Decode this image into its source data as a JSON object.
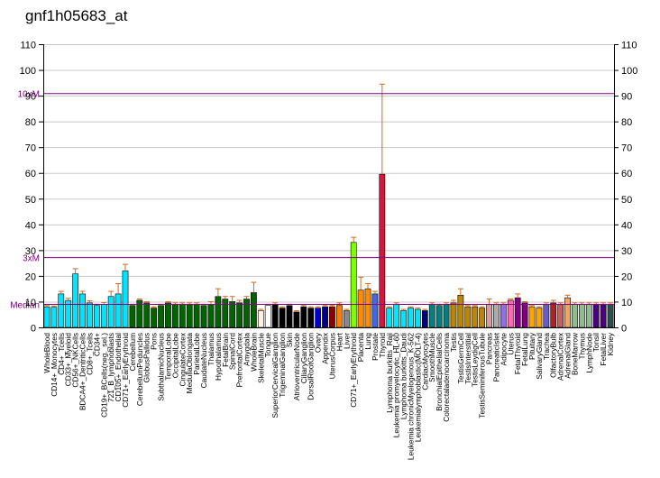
{
  "title": "gnf1h05683_at",
  "chart_data": {
    "type": "bar",
    "title": "gnf1h05683_at",
    "ylim": [
      0,
      110
    ],
    "yticks": [
      0,
      10,
      20,
      30,
      40,
      50,
      60,
      70,
      80,
      90,
      100,
      110
    ],
    "grid": true,
    "reference_lines": [
      {
        "label": "10xM",
        "value": 91,
        "color": "#800080"
      },
      {
        "label": "3xM",
        "value": 27.3,
        "color": "#800080"
      },
      {
        "label": "Median",
        "value": 9.1,
        "color": "#800080"
      }
    ],
    "categories": [
      "WholeBlood",
      "CD14+_Monocytes",
      "CD4+_Tcells",
      "CD33+_Myeloid",
      "CD56+_NKCells",
      "BDCA4+_DentriticCells",
      "CD8+_Tcells",
      "CD34+",
      "CD19+_BCells(neg._sel.)",
      "721_B_lymphoblasts",
      "CD105+_Endothelial",
      "CD71+_EarlyErythroid",
      "Cerebellum",
      "CerebellumPeduncles",
      "GlobusPallidus",
      "Pons",
      "SubthalamicNucleus",
      "TemporalLobe",
      "OccipitalLobe",
      "CingulateCortex",
      "MedullaOblongata",
      "ParietalLobe",
      "CaudateNucleus",
      "Thalamus",
      "Hypothalamus",
      "FetalBrain",
      "SpinalCord",
      "PrefrontalCortex",
      "Amygdala",
      "WholeBrain",
      "SkeletalMuscle",
      "Tongue",
      "SuperiorCervicalGanglion",
      "TrigeminalGanglion",
      "Skin",
      "AtrioventricularNode",
      "CiliaryGanglion",
      "DorsalRootGanglion",
      "Ovary",
      "Appendix",
      "UterusCorpus",
      "Heart",
      "Liver",
      "CD71+_EarlyErythroid2",
      "Placenta",
      "Lung",
      "Prostate",
      "Thyroid",
      "Lymphoma burkitts Raji",
      "Leukemia promyelocytic HL-60",
      "Lymphoma burkitts Daudi",
      "Leukemia chronicMyelogenous K-562",
      "Leukemia lymphoblastic MOLT-4",
      "CardiacMyocytes",
      "SmoothMuscle",
      "BronchialEpithelialCells",
      "Colorectaladenocarcinoma",
      "Testis",
      "TestisGermCell",
      "TestisInterstitial",
      "TestisLeydigCell",
      "TestisSeminiferousTubule",
      "Pancreas",
      "PancreaticIslet",
      "Adipocyte",
      "Uterus",
      "FetalThyroid",
      "FetalLung",
      "Pituitary",
      "SalivaryGland",
      "Trachea",
      "OlfactoryBulb",
      "AdrenalCortex",
      "AdrenalGland",
      "BoneMarrow",
      "Thymus",
      "LymphNode",
      "Tonsil",
      "FetalLiver",
      "Kidney"
    ],
    "xlabels": [
      "WholeBlood",
      "CD14+_Monocytes",
      "CD4+_Tcells",
      "CD33+_Myeloid",
      "CD56+_NKCells",
      "BDCA4+_DentriticCells",
      "CD8+_Tcells",
      "CD34+",
      "CD19+_BCells(neg._sel.)",
      "721_B_lymphoblasts",
      "CD105+_Endothelial",
      "CD71+_EarlyErythroid",
      "Cerebellum",
      "CerebellumPeduncles",
      "GlobusPallidus",
      "Pons",
      "SubthalamicNucleus",
      "TemporalLobe",
      "OccipitalLobe",
      "CingulateCortex",
      "MedullaOblongata",
      "ParietalLobe",
      "CaudateNucleus",
      "Thalamus",
      "Hypothalamus",
      "FetalBrain",
      "SpinalCord",
      "PrefrontalCortex",
      "Amygdala",
      "WholeBrain",
      "SkeletalMuscle",
      "Tongue",
      "SuperiorCervicalGanglion",
      "TrigeminalGanglion",
      "Skin",
      "AtrioventricularNode",
      "CiliaryGanglion",
      "DorsalRootGanglion",
      "Ovary",
      "Appendix",
      "UterusCorpus",
      "Heart",
      "Liver",
      "CD71+_EarlyErythroid",
      "Placenta",
      "Lung",
      "Prostate",
      "Thyroid",
      "Lymphoma burkitts_Raji",
      "Leukemia promyelocytic_HL-60",
      "Lymphoma burkitts_Daudi",
      "Leukemia chronicMyelogenous_K-562",
      "Leukemialymphoblastic(MOLT-4)",
      "CardiacMyocytes",
      "SmoothMuscle",
      "BronchialEpithelialCells",
      "Colorectaladenocarcinoma",
      "Testis",
      "TestisGermCell",
      "TestisInterstitial",
      "TestisLeydigCell",
      "TestisSeminiferousTubule",
      "Pancreas",
      "PancreaticIslet",
      "Adipocyte",
      "Uterus",
      "FetalThyroid",
      "FetalLung",
      "Pituitary",
      "SalivaryGland",
      "Trachea",
      "OlfactoryBulb",
      "AdrenalCortex",
      "AdrenalGland",
      "BoneMarrow",
      "Thymus",
      "LymphNode",
      "Tonsil",
      "FetalLiver",
      "Kidney"
    ],
    "values": [
      8.0,
      7.8,
      13.0,
      10.5,
      20.8,
      13.0,
      9.5,
      8.5,
      9.0,
      12.0,
      13.0,
      22.0,
      8.5,
      10.5,
      9.5,
      7.5,
      8.5,
      9.5,
      9.0,
      9.0,
      9.0,
      9.0,
      8.5,
      9.0,
      12.0,
      11.0,
      10.0,
      9.5,
      11.0,
      13.5,
      6.5,
      8.5,
      9.0,
      7.5,
      8.5,
      6.0,
      8.0,
      7.5,
      7.5,
      8.0,
      8.0,
      8.5,
      6.5,
      33.0,
      14.5,
      15.0,
      13.0,
      59.5,
      7.5,
      9.0,
      6.5,
      7.5,
      7.0,
      6.5,
      9.0,
      8.5,
      9.0,
      9.5,
      12.5,
      8.0,
      8.0,
      7.5,
      9.0,
      9.0,
      9.0,
      10.5,
      11.5,
      9.5,
      8.0,
      7.5,
      9.0,
      9.5,
      9.0,
      11.5,
      9.0,
      9.0,
      9.0,
      9.0,
      9.0,
      9.0
    ],
    "errors": [
      0.5,
      0.5,
      1.0,
      0.8,
      2.0,
      1.0,
      0.8,
      0.5,
      0.6,
      2.0,
      4.0,
      2.5,
      0.5,
      0.5,
      0.5,
      0.5,
      0.5,
      0.5,
      0.5,
      0.5,
      0.5,
      0.5,
      0.5,
      1.0,
      3.0,
      1.0,
      2.0,
      1.0,
      1.0,
      4.0,
      0.5,
      0.5,
      0.5,
      0.5,
      0.5,
      0.5,
      0.5,
      0.5,
      0.5,
      0.5,
      0.5,
      1.0,
      0.5,
      2.0,
      5.0,
      2.0,
      1.0,
      35.0,
      0.5,
      0.5,
      0.5,
      0.5,
      0.5,
      0.5,
      0.5,
      0.5,
      0.5,
      1.0,
      2.5,
      0.5,
      0.5,
      0.5,
      2.0,
      0.5,
      0.5,
      0.5,
      1.5,
      0.5,
      0.5,
      0.5,
      0.5,
      1.0,
      0.5,
      1.0,
      0.5,
      0.5,
      0.5,
      0.5,
      0.5,
      0.5
    ],
    "colors": [
      "#00e5ff",
      "#00e5ff",
      "#00e5ff",
      "#00e5ff",
      "#00e5ff",
      "#00e5ff",
      "#00e5ff",
      "#00e5ff",
      "#00e5ff",
      "#00e5ff",
      "#00e5ff",
      "#00e5ff",
      "#006400",
      "#006400",
      "#006400",
      "#006400",
      "#006400",
      "#006400",
      "#006400",
      "#006400",
      "#006400",
      "#006400",
      "#006400",
      "#006400",
      "#006400",
      "#006400",
      "#006400",
      "#006400",
      "#006400",
      "#006400",
      "#fff3e0",
      "#ffffff",
      "#000000",
      "#000000",
      "#000000",
      "#000000",
      "#000000",
      "#000000",
      "#0000cd",
      "#000080",
      "#8b0000",
      "#ff7f00",
      "#888888",
      "#7fff00",
      "#ff8c00",
      "#ff8c00",
      "#4169e1",
      "#dc143c",
      "#00e5ff",
      "#00e5ff",
      "#00e5ff",
      "#00e5ff",
      "#00e5ff",
      "#000080",
      "#008080",
      "#008080",
      "#008080",
      "#b8860b",
      "#b8860b",
      "#b8860b",
      "#b8860b",
      "#b8860b",
      "#d3a0a0",
      "#aaaaaa",
      "#9370db",
      "#ff69b4",
      "#800080",
      "#800080",
      "#ffa500",
      "#ffa500",
      "#6a5acd",
      "#b22222",
      "#cd5c5c",
      "#f4a460",
      "#8fbc8f",
      "#8fbc8f",
      "#8fbc8f",
      "#4b0082",
      "#4b0082",
      "#2f4f4f"
    ]
  }
}
